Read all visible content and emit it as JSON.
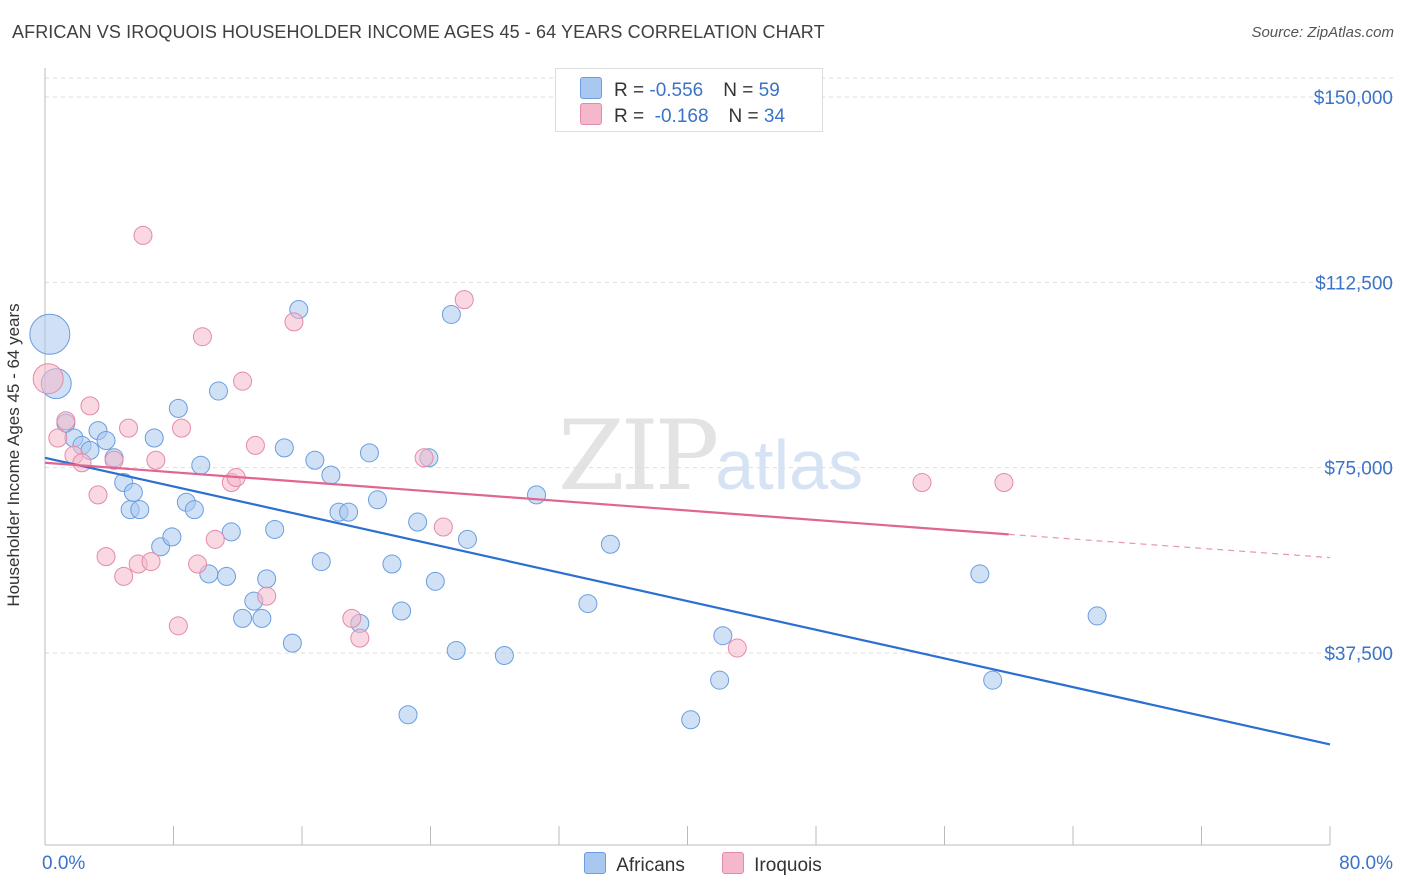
{
  "title": "AFRICAN VS IROQUOIS HOUSEHOLDER INCOME AGES 45 - 64 YEARS CORRELATION CHART",
  "source": "Source: ZipAtlas.com",
  "watermark": {
    "zip": "ZIP",
    "atlas": "atlas"
  },
  "legend": {
    "rows": [
      {
        "r_label": "R = ",
        "r_value": "-0.556",
        "n_label": "N = ",
        "n_value": "59",
        "color": "#a9c8ef"
      },
      {
        "r_label": "R = ",
        "r_value": " -0.168",
        "n_label": "N = ",
        "n_value": "34",
        "color": "#f5b8cb"
      }
    ]
  },
  "chart_data": {
    "type": "scatter",
    "title": "AFRICAN VS IROQUOIS HOUSEHOLDER INCOME AGES 45 - 64 YEARS CORRELATION CHART",
    "xlabel": "",
    "ylabel": "Householder Income Ages 45 - 64 years",
    "xlim": [
      0,
      80
    ],
    "ylim": [
      0,
      152000
    ],
    "x_tick_labels": [
      "0.0%",
      "80.0%"
    ],
    "y_ticks": [
      37500,
      75000,
      112500,
      150000
    ],
    "y_tick_labels": [
      "$37,500",
      "$75,000",
      "$112,500",
      "$150,000"
    ],
    "grid": true,
    "legend_position": "bottom",
    "series": [
      {
        "name": "Africans",
        "color": "#a9c8ef",
        "stroke": "#6a9ee0",
        "trend_color": "#2b70d0",
        "trend": {
          "x0": 0,
          "y0": 77000,
          "x1": 80,
          "y1": 19000
        },
        "points": [
          {
            "x": 0.3,
            "y": 102000,
            "s": 3
          },
          {
            "x": 0.7,
            "y": 92000,
            "s": 2
          },
          {
            "x": 1.3,
            "y": 84000
          },
          {
            "x": 1.8,
            "y": 81000
          },
          {
            "x": 2.3,
            "y": 79500
          },
          {
            "x": 2.8,
            "y": 78500
          },
          {
            "x": 3.3,
            "y": 82500
          },
          {
            "x": 3.8,
            "y": 80500
          },
          {
            "x": 4.3,
            "y": 77000
          },
          {
            "x": 4.9,
            "y": 72000
          },
          {
            "x": 5.3,
            "y": 66500
          },
          {
            "x": 5.5,
            "y": 70000
          },
          {
            "x": 5.9,
            "y": 66500
          },
          {
            "x": 6.8,
            "y": 81000
          },
          {
            "x": 7.2,
            "y": 59000
          },
          {
            "x": 7.9,
            "y": 61000
          },
          {
            "x": 8.3,
            "y": 87000
          },
          {
            "x": 8.8,
            "y": 68000
          },
          {
            "x": 9.3,
            "y": 66500
          },
          {
            "x": 9.7,
            "y": 75500
          },
          {
            "x": 10.2,
            "y": 53500
          },
          {
            "x": 10.8,
            "y": 90500
          },
          {
            "x": 11.3,
            "y": 53000
          },
          {
            "x": 11.6,
            "y": 62000
          },
          {
            "x": 12.3,
            "y": 44500
          },
          {
            "x": 13.0,
            "y": 48000
          },
          {
            "x": 13.5,
            "y": 44500
          },
          {
            "x": 13.8,
            "y": 52500
          },
          {
            "x": 14.3,
            "y": 62500
          },
          {
            "x": 14.9,
            "y": 79000
          },
          {
            "x": 15.4,
            "y": 39500
          },
          {
            "x": 15.8,
            "y": 107000
          },
          {
            "x": 16.8,
            "y": 76500
          },
          {
            "x": 17.2,
            "y": 56000
          },
          {
            "x": 17.8,
            "y": 73500
          },
          {
            "x": 18.3,
            "y": 66000
          },
          {
            "x": 18.9,
            "y": 66000
          },
          {
            "x": 19.6,
            "y": 43500
          },
          {
            "x": 20.2,
            "y": 78000
          },
          {
            "x": 20.7,
            "y": 68500
          },
          {
            "x": 21.6,
            "y": 55500
          },
          {
            "x": 22.2,
            "y": 46000
          },
          {
            "x": 22.6,
            "y": 25000
          },
          {
            "x": 23.2,
            "y": 64000
          },
          {
            "x": 23.9,
            "y": 77000
          },
          {
            "x": 24.3,
            "y": 52000
          },
          {
            "x": 25.3,
            "y": 106000
          },
          {
            "x": 25.6,
            "y": 38000
          },
          {
            "x": 26.3,
            "y": 60500
          },
          {
            "x": 28.6,
            "y": 37000
          },
          {
            "x": 30.6,
            "y": 69500
          },
          {
            "x": 33.8,
            "y": 47500
          },
          {
            "x": 35.2,
            "y": 59500
          },
          {
            "x": 40.2,
            "y": 24000
          },
          {
            "x": 42.2,
            "y": 41000
          },
          {
            "x": 42.0,
            "y": 32000
          },
          {
            "x": 58.2,
            "y": 53500
          },
          {
            "x": 59.0,
            "y": 32000
          },
          {
            "x": 65.5,
            "y": 45000
          }
        ]
      },
      {
        "name": "Iroquois",
        "color": "#f5b8cb",
        "stroke": "#e48aa8",
        "trend_color": "#e0668f",
        "trend": {
          "x0": 0,
          "y0": 76000,
          "x1": 60,
          "y1": 61500
        },
        "trend_extension": {
          "x0": 60,
          "y0": 61500,
          "x1": 80,
          "y1": 56800
        },
        "points": [
          {
            "x": 0.2,
            "y": 93000,
            "s": 2
          },
          {
            "x": 0.8,
            "y": 81000
          },
          {
            "x": 1.3,
            "y": 84500
          },
          {
            "x": 1.8,
            "y": 77500
          },
          {
            "x": 2.3,
            "y": 76000
          },
          {
            "x": 2.8,
            "y": 87500
          },
          {
            "x": 3.3,
            "y": 69500
          },
          {
            "x": 3.8,
            "y": 57000
          },
          {
            "x": 4.3,
            "y": 76500
          },
          {
            "x": 4.9,
            "y": 53000
          },
          {
            "x": 5.2,
            "y": 83000
          },
          {
            "x": 5.8,
            "y": 55500
          },
          {
            "x": 6.1,
            "y": 122000
          },
          {
            "x": 6.6,
            "y": 56000
          },
          {
            "x": 6.9,
            "y": 76500
          },
          {
            "x": 8.3,
            "y": 43000
          },
          {
            "x": 8.5,
            "y": 83000
          },
          {
            "x": 9.5,
            "y": 55500
          },
          {
            "x": 9.8,
            "y": 101500
          },
          {
            "x": 10.6,
            "y": 60500
          },
          {
            "x": 11.6,
            "y": 72000
          },
          {
            "x": 11.9,
            "y": 73000
          },
          {
            "x": 12.3,
            "y": 92500
          },
          {
            "x": 13.1,
            "y": 79500
          },
          {
            "x": 13.8,
            "y": 49000
          },
          {
            "x": 15.5,
            "y": 104500
          },
          {
            "x": 19.1,
            "y": 44500
          },
          {
            "x": 19.6,
            "y": 40500
          },
          {
            "x": 23.6,
            "y": 77000
          },
          {
            "x": 24.8,
            "y": 63000
          },
          {
            "x": 26.1,
            "y": 109000
          },
          {
            "x": 43.1,
            "y": 38500
          },
          {
            "x": 54.6,
            "y": 72000
          },
          {
            "x": 59.7,
            "y": 72000
          }
        ]
      }
    ]
  }
}
